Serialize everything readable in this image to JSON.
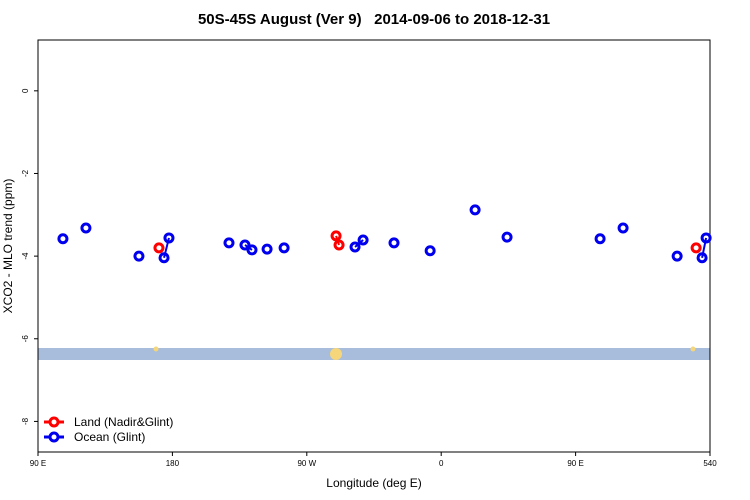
{
  "chart_data": {
    "type": "scatter",
    "title": "50S-45S August (Ver 9)   2014-09-06 to 2018-12-31",
    "x_label": "Longitude (deg E)",
    "y_label": "XCO2 - MLO trend (ppm)",
    "xlim": [
      90,
      540
    ],
    "xticks": [
      {
        "value": 90,
        "label": "90 E"
      },
      180,
      {
        "value": 270,
        "label": "90 W"
      },
      {
        "value": 360,
        "label": "0"
      },
      {
        "value": 450,
        "label": "90 E"
      },
      540
    ],
    "ylim": [
      -8.74,
      1.23
    ],
    "yticks": [
      0,
      -2,
      -4,
      -6,
      -8
    ],
    "legend": "bottom-left",
    "series": [
      {
        "name": "Land (Nadir&Glint)",
        "color": "#ff0000",
        "x": [
          171.0,
          289.6,
          291.6,
          530.7
        ],
        "values": [
          -3.8,
          -3.51,
          -3.73,
          -3.8
        ]
      },
      {
        "name": "Ocean (Glint)",
        "color": "#0000ee",
        "x": [
          106.7,
          122.1,
          157.6,
          174.4,
          177.7,
          217.9,
          228.6,
          233.3,
          243.4,
          254.8,
          302.3,
          307.7,
          328.4,
          352.6,
          382.7,
          404.1,
          466.4,
          481.8,
          518.0,
          534.7,
          537.4
        ],
        "values": [
          -3.58,
          -3.32,
          -4.0,
          -4.04,
          -3.56,
          -3.68,
          -3.73,
          -3.85,
          -3.83,
          -3.8,
          -3.78,
          -3.61,
          -3.68,
          -3.87,
          -2.88,
          -3.54,
          -3.58,
          -3.32,
          -4.0,
          -4.04,
          -3.56
        ]
      }
    ]
  }
}
